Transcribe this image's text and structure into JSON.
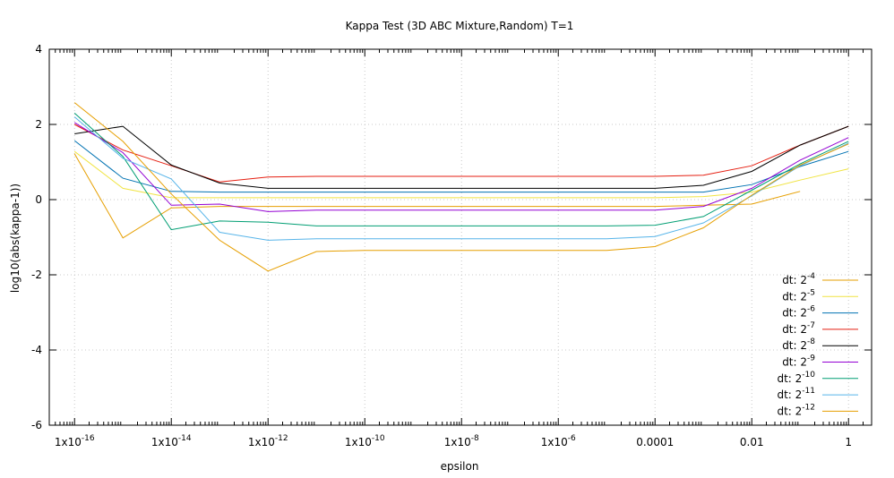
{
  "chart_data": {
    "type": "line",
    "title": "Kappa Test (3D ABC Mixture,Random) T=1",
    "xlabel": "epsilon",
    "ylabel": "log10(abs(kappa-1))",
    "x_scale": "log",
    "xlim": [
      3e-17,
      3
    ],
    "ylim": [
      -6,
      4
    ],
    "grid": true,
    "legend_position": "bottom-right",
    "x_ticks": [
      {
        "value": 1e-16,
        "label": "1x10",
        "exp": "-16"
      },
      {
        "value": 1e-14,
        "label": "1x10",
        "exp": "-14"
      },
      {
        "value": 1e-12,
        "label": "1x10",
        "exp": "-12"
      },
      {
        "value": 1e-10,
        "label": "1x10",
        "exp": "-10"
      },
      {
        "value": 1e-08,
        "label": "1x10",
        "exp": "-8"
      },
      {
        "value": 1e-06,
        "label": "1x10",
        "exp": "-6"
      },
      {
        "value": 0.0001,
        "label": "0.0001",
        "exp": ""
      },
      {
        "value": 0.01,
        "label": "0.01",
        "exp": ""
      },
      {
        "value": 1,
        "label": "1",
        "exp": ""
      }
    ],
    "y_ticks": [
      {
        "value": 4,
        "label": "4"
      },
      {
        "value": 2,
        "label": "2"
      },
      {
        "value": 0,
        "label": "0"
      },
      {
        "value": -2,
        "label": "-2"
      },
      {
        "value": -4,
        "label": "-4"
      },
      {
        "value": -6,
        "label": "-6"
      }
    ],
    "x": [
      1e-16,
      1e-15,
      1e-14,
      1e-13,
      1e-12,
      1e-11,
      1e-10,
      1e-09,
      1e-08,
      1e-07,
      1e-06,
      1e-05,
      0.0001,
      0.001,
      0.01,
      0.1,
      1
    ],
    "series": [
      {
        "name_base": "dt: 2",
        "name_exp": "-4",
        "color": "#e69f00",
        "values": [
          1.22,
          -1.02,
          -0.22,
          -0.18,
          -0.18,
          -0.18,
          -0.18,
          -0.18,
          -0.18,
          -0.18,
          -0.18,
          -0.18,
          -0.18,
          -0.15,
          -0.12,
          0.22,
          null
        ]
      },
      {
        "name_base": "dt: 2",
        "name_exp": "-5",
        "color": "#f0e442",
        "values": [
          1.28,
          0.3,
          0.05,
          0.05,
          0.05,
          0.05,
          0.05,
          0.05,
          0.05,
          0.05,
          0.05,
          0.05,
          0.05,
          0.08,
          0.2,
          0.52,
          0.82
        ]
      },
      {
        "name_base": "dt: 2",
        "name_exp": "-6",
        "color": "#0072b2",
        "values": [
          1.57,
          0.57,
          0.22,
          0.2,
          0.2,
          0.2,
          0.2,
          0.2,
          0.2,
          0.2,
          0.2,
          0.2,
          0.2,
          0.2,
          0.4,
          0.88,
          1.28
        ]
      },
      {
        "name_base": "dt: 2",
        "name_exp": "-7",
        "color": "#e51e10",
        "values": [
          2.0,
          1.32,
          0.9,
          0.47,
          0.6,
          0.62,
          0.62,
          0.62,
          0.62,
          0.62,
          0.62,
          0.62,
          0.62,
          0.65,
          0.9,
          1.45,
          1.95
        ]
      },
      {
        "name_base": "dt: 2",
        "name_exp": "-8",
        "color": "#000000",
        "values": [
          1.75,
          1.95,
          0.92,
          0.44,
          0.3,
          0.3,
          0.3,
          0.3,
          0.3,
          0.3,
          0.3,
          0.3,
          0.3,
          0.38,
          0.75,
          1.45,
          1.95
        ]
      },
      {
        "name_base": "dt: 2",
        "name_exp": "-9",
        "color": "#9400d3",
        "values": [
          2.05,
          1.25,
          -0.15,
          -0.12,
          -0.32,
          -0.28,
          -0.28,
          -0.28,
          -0.28,
          -0.28,
          -0.28,
          -0.28,
          -0.28,
          -0.18,
          0.3,
          1.05,
          1.65
        ]
      },
      {
        "name_base": "dt: 2",
        "name_exp": "-10",
        "color": "#009e73",
        "values": [
          2.3,
          1.15,
          -0.8,
          -0.57,
          -0.6,
          -0.7,
          -0.7,
          -0.7,
          -0.7,
          -0.7,
          -0.7,
          -0.7,
          -0.68,
          -0.45,
          0.25,
          0.95,
          1.55
        ]
      },
      {
        "name_base": "dt: 2",
        "name_exp": "-11",
        "color": "#56b4e9",
        "values": [
          2.2,
          1.1,
          0.55,
          -0.87,
          -1.08,
          -1.04,
          -1.04,
          -1.04,
          -1.04,
          -1.04,
          -1.04,
          -1.04,
          -0.98,
          -0.62,
          0.1,
          0.9,
          1.5
        ]
      },
      {
        "name_base": "dt: 2",
        "name_exp": "-12",
        "color": "#e69f00",
        "values": [
          2.58,
          1.55,
          0.15,
          -1.08,
          -1.9,
          -1.38,
          -1.35,
          -1.35,
          -1.35,
          -1.35,
          -1.35,
          -1.35,
          -1.25,
          -0.75,
          0.12,
          0.92,
          1.48
        ]
      }
    ]
  }
}
